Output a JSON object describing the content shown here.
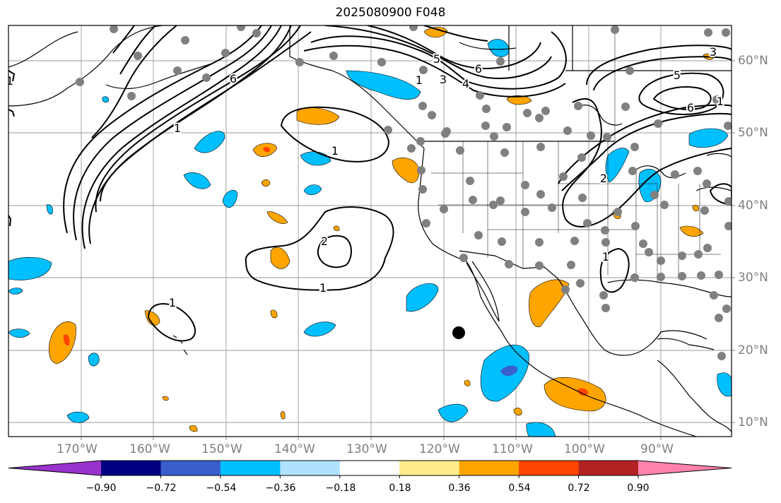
{
  "title": "2025080900 F048",
  "lon_labels": [
    "170°W",
    "160°W",
    "150°W",
    "140°W",
    "130°W",
    "120°W",
    "110°W",
    "100°W",
    "90°W"
  ],
  "lat_labels": [
    "60°N",
    "50°N",
    "40°N",
    "30°N",
    "20°N",
    "10°N"
  ],
  "contour_labels": [
    "1",
    "6",
    "1",
    "5",
    "3",
    "4",
    "6",
    "1",
    "2",
    "1",
    "1",
    "1",
    "2",
    "5",
    "6",
    "3",
    "1",
    "1"
  ],
  "colorbar": {
    "ticks": [
      "−0.90",
      "−0.72",
      "−0.54",
      "−0.36",
      "−0.18",
      "0.18",
      "0.36",
      "0.54",
      "0.72",
      "0.90"
    ],
    "colors": [
      "#9932cc",
      "#000080",
      "#3a5fcd",
      "#00bfff",
      "#b0e2ff",
      "#ffffff",
      "#ffec8b",
      "#ffa500",
      "#ff4500",
      "#b22222",
      "#ff82ab"
    ]
  }
}
